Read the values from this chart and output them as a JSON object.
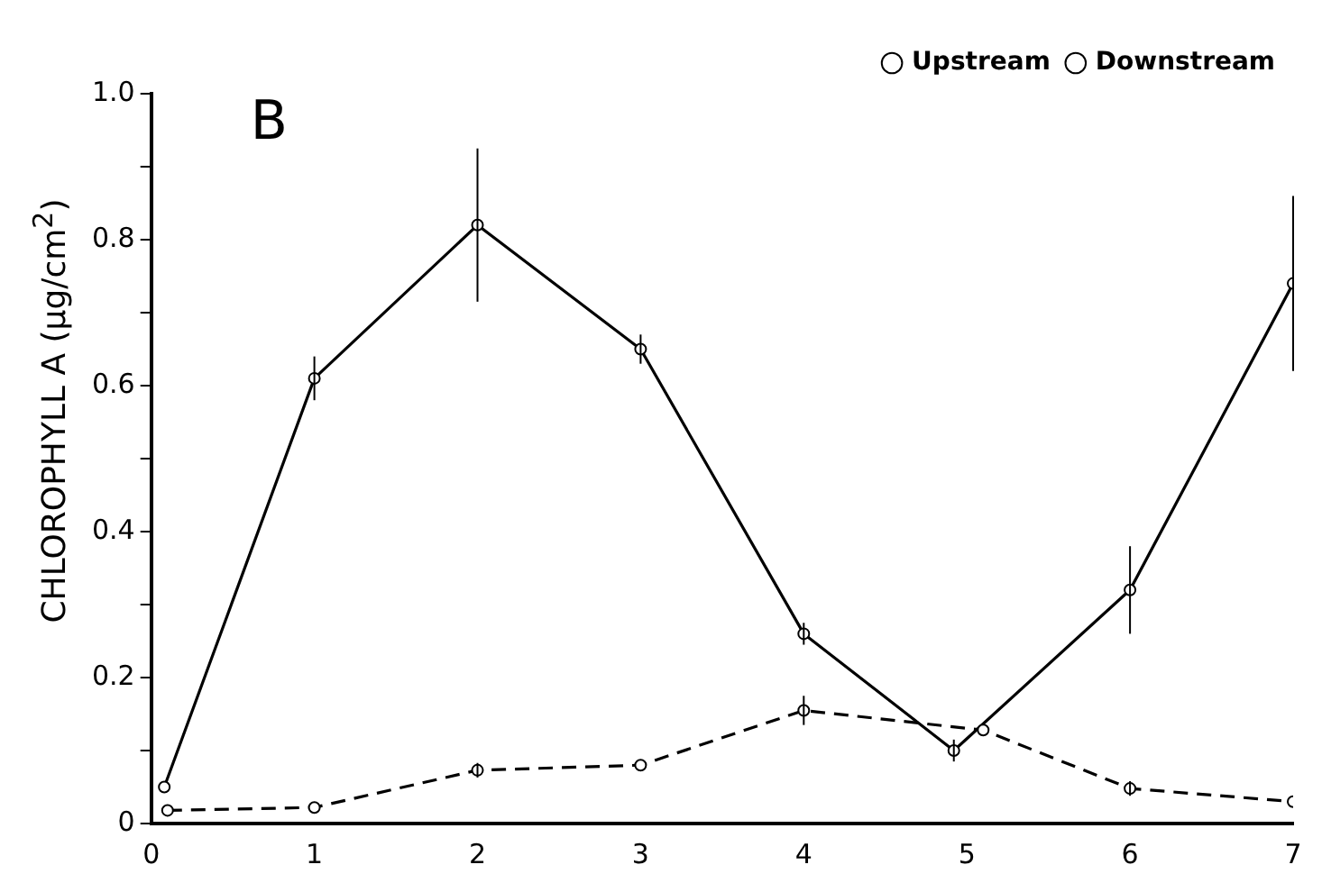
{
  "chart_data": {
    "type": "line",
    "ylabel": "CHLOROPHYLL A  (µg/cm$^{2}$)",
    "annotations": [
      "B"
    ],
    "xlim": [
      0,
      7
    ],
    "xticks": [
      0,
      1,
      2,
      3,
      4,
      5,
      6,
      7
    ],
    "ylim": [
      0,
      1
    ],
    "yticks": [
      0,
      {
        "value": 0.1,
        "label": null
      },
      {
        "value": 0.2,
        "label": "0.2"
      },
      {
        "value": 0.3,
        "label": null
      },
      {
        "value": 0.4,
        "label": "0.4"
      },
      {
        "value": 0.5,
        "label": null
      },
      {
        "value": 0.6,
        "label": "0.6"
      },
      {
        "value": 0.7,
        "label": null
      },
      {
        "value": 0.8,
        "label": "0.8"
      },
      {
        "value": 0.9,
        "label": null
      },
      {
        "value": 1,
        "label": "1.0"
      }
    ],
    "grid": false,
    "legend": "top right",
    "marker": "circle",
    "series": [
      {
        "name": "Upstream",
        "color": "#000000",
        "line_style": "dashed",
        "x": [
          0.1,
          1,
          2,
          3,
          4,
          5.1,
          6,
          7
        ],
        "values": [
          0.018,
          0.022,
          0.073,
          0.08,
          0.155,
          0.128,
          0.048,
          0.03
        ],
        "errors": [
          null,
          null,
          0.01,
          null,
          0.02,
          null,
          0.01,
          null
        ]
      },
      {
        "name": "Downstream",
        "color": "#000000",
        "line_style": "solid",
        "x": [
          0.08,
          1,
          2,
          3,
          4,
          4.92,
          6,
          7
        ],
        "values": [
          0.05,
          0.61,
          0.82,
          0.65,
          0.26,
          0.1,
          0.32,
          0.74
        ],
        "errors": [
          null,
          0.03,
          0.105,
          0.02,
          0.015,
          0.015,
          0.06,
          0.12
        ]
      }
    ]
  }
}
